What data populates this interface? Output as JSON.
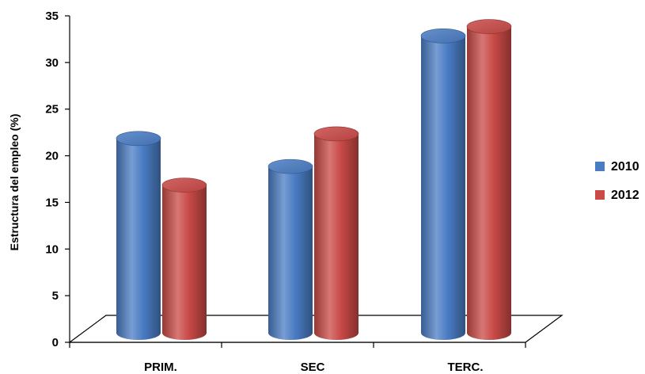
{
  "chart_data": {
    "type": "bar",
    "categories": [
      "PRIM.",
      "SEC",
      "TERC."
    ],
    "series": [
      {
        "name": "2010",
        "values": [
          21,
          18,
          32
        ],
        "color": "#4a7cc4"
      },
      {
        "name": "2012",
        "values": [
          16,
          21.5,
          33
        ],
        "color": "#c94a47"
      }
    ],
    "title": "",
    "xlabel": "",
    "ylabel": "Estructura del empleo (%)",
    "ylim": [
      0,
      35
    ],
    "yticks": [
      0,
      5,
      10,
      15,
      20,
      25,
      30,
      35
    ],
    "grid": false,
    "legend": "right",
    "style": "3d-cylinder"
  }
}
